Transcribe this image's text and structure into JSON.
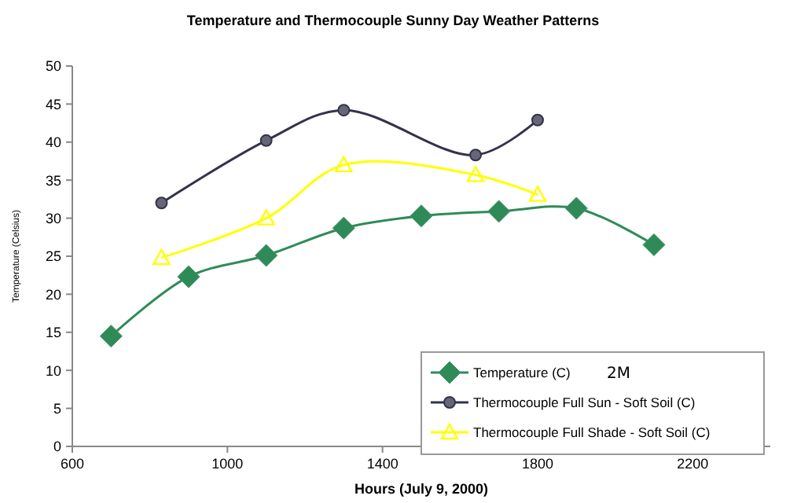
{
  "chart_data": {
    "type": "line",
    "title": "Temperature and Thermocouple Sunny Day Weather Patterns",
    "xlabel": "Hours (July 9, 2000)",
    "ylabel": "Temperature (Celsius)",
    "annotations": [
      "2M"
    ],
    "xlim": [
      600,
      2400
    ],
    "xticks": [
      600,
      1000,
      1400,
      1800,
      2200
    ],
    "ylim": [
      0,
      50
    ],
    "yticks": [
      0,
      5,
      10,
      15,
      20,
      25,
      30,
      35,
      40,
      45,
      50
    ],
    "grid": false,
    "legend": "bottom right",
    "series": [
      {
        "name": "Temperature (C)",
        "color": "#2e8b57",
        "marker": "diamond",
        "x": [
          700,
          900,
          1100,
          1300,
          1500,
          1700,
          1900,
          2100
        ],
        "values": [
          14.5,
          22.3,
          25.1,
          28.7,
          30.3,
          30.9,
          31.3,
          26.5
        ]
      },
      {
        "name": "Thermocouple Full Sun - Soft Soil (C)",
        "color": "#33334d",
        "marker": "circle",
        "x": [
          830,
          1100,
          1300,
          1640,
          1800
        ],
        "values": [
          32,
          40.2,
          44.2,
          38.3,
          42.9
        ]
      },
      {
        "name": "Thermocouple Full Shade - Soft Soil (C)",
        "color": "#ffff00",
        "marker": "triangle",
        "x": [
          830,
          1100,
          1300,
          1640,
          1800
        ],
        "values": [
          24.8,
          30,
          37,
          35.7,
          33.1
        ]
      }
    ]
  }
}
